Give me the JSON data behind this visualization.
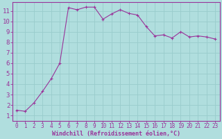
{
  "x": [
    0,
    1,
    2,
    3,
    4,
    5,
    6,
    7,
    8,
    9,
    10,
    11,
    12,
    13,
    14,
    15,
    16,
    17,
    18,
    19,
    20,
    21,
    22,
    23
  ],
  "y": [
    1.5,
    1.4,
    2.2,
    3.3,
    4.5,
    6.0,
    11.3,
    11.1,
    11.35,
    11.35,
    10.2,
    10.7,
    11.1,
    10.75,
    10.6,
    9.5,
    8.6,
    8.7,
    8.4,
    9.0,
    8.5,
    8.6,
    8.5,
    8.3
  ],
  "line_color": "#993399",
  "marker": "+",
  "marker_size": 3,
  "bg_color": "#b0dede",
  "grid_color": "#99cccc",
  "axis_color": "#993399",
  "xlabel": "Windchill (Refroidissement éolien,°C)",
  "xlabel_fontsize": 6.0,
  "xlim": [
    -0.5,
    23.5
  ],
  "ylim": [
    0.5,
    11.8
  ],
  "yticks": [
    1,
    2,
    3,
    4,
    5,
    6,
    7,
    8,
    9,
    10,
    11
  ],
  "xticks": [
    0,
    1,
    2,
    3,
    4,
    5,
    6,
    7,
    8,
    9,
    10,
    11,
    12,
    13,
    14,
    15,
    16,
    17,
    18,
    19,
    20,
    21,
    22,
    23
  ],
  "tick_fontsize": 5.5,
  "ytick_fontsize": 6.5
}
